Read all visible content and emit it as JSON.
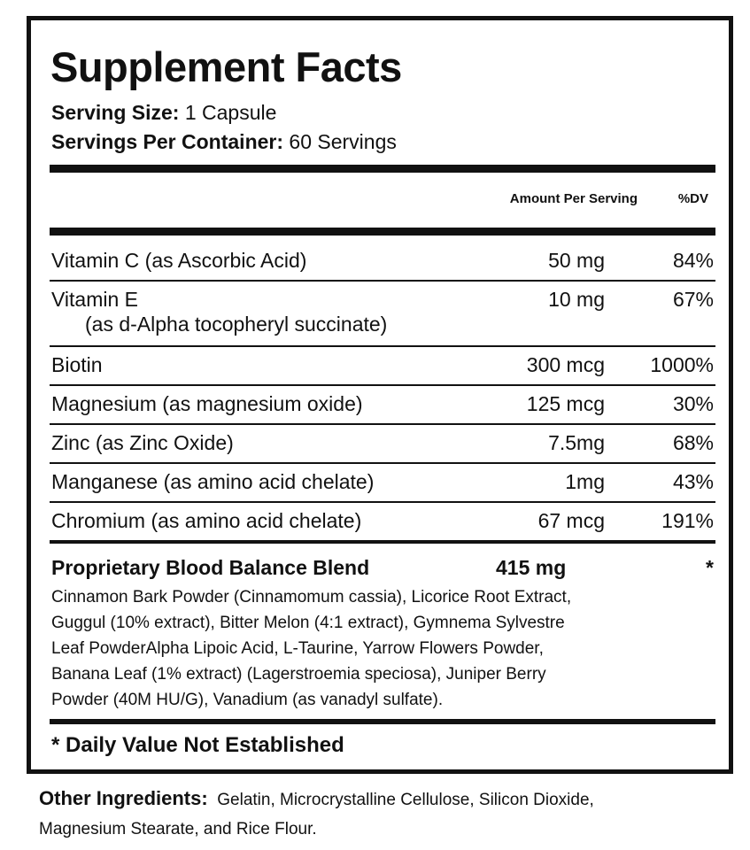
{
  "title": "Supplement Facts",
  "serving_size": {
    "label": "Serving Size:",
    "value": "1 Capsule"
  },
  "servings_per_container": {
    "label": "Servings Per Container:",
    "value": "60 Servings"
  },
  "table": {
    "header": [
      "Amount Per Serving",
      "%DV"
    ],
    "rows": [
      {
        "name": "Vitamin C (as Ascorbic Acid)",
        "amount": "50 mg",
        "dv": "84%"
      },
      {
        "name": "Vitamin E",
        "note": "(as d-Alpha tocopheryl succinate)",
        "amount": "10 mg",
        "dv": "67%"
      },
      {
        "name": "Biotin",
        "amount": "300 mcg",
        "dv": "1000%"
      },
      {
        "name": "Magnesium (as magnesium oxide)",
        "amount": "125 mcg",
        "dv": "30%"
      },
      {
        "name": "Zinc (as Zinc Oxide)",
        "amount": "7.5mg",
        "dv": "68%"
      },
      {
        "name": "Manganese (as amino acid chelate)",
        "amount": "1mg",
        "dv": "43%"
      },
      {
        "name": "Chromium (as amino acid chelate)",
        "amount": "67 mcg",
        "dv": "191%"
      }
    ]
  },
  "blend": {
    "name": "Proprietary Blood Balance Blend",
    "amount": "415 mg",
    "dv": "*",
    "ingredients": [
      "Cinnamon Bark Powder (Cinnamomum cassia), Licorice Root Extract,",
      "Guggul (10% extract), Bitter Melon (4:1 extract), Gymnema Sylvestre",
      "Leaf PowderAlpha Lipoic Acid, L-Taurine, Yarrow Flowers Powder,",
      "Banana Leaf (1% extract) (Lagerstroemia speciosa), Juniper Berry",
      "Powder (40M HU/G), Vanadium (as vanadyl sulfate)."
    ]
  },
  "footnote": "* Daily Value Not Established",
  "other_ingredients": {
    "label": "Other Ingredients:",
    "lines": [
      "Gelatin, Microcrystalline Cellulose, Silicon Dioxide,",
      "Magnesium Stearate, and Rice Flour."
    ]
  }
}
